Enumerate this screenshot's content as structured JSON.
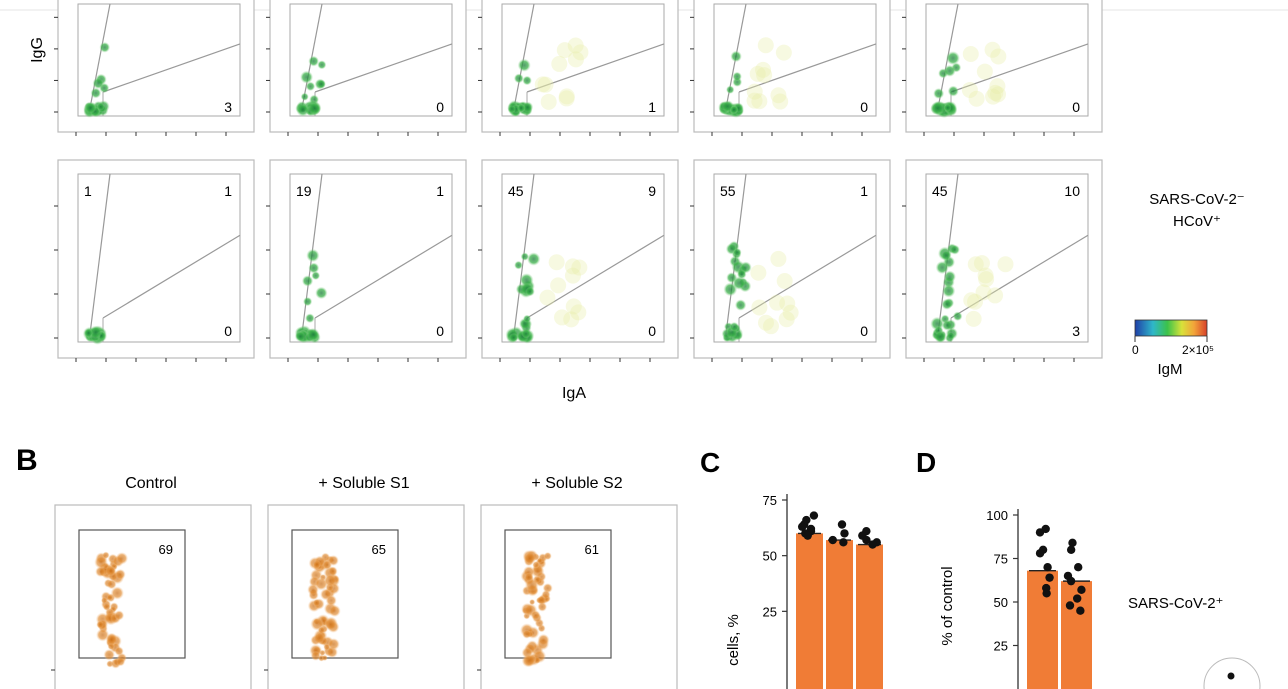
{
  "panelA": {
    "ylabel": "IgG",
    "xlabel": "IgA",
    "row_label_line1": "SARS-CoV-2⁻",
    "row_label_line2": "HCoV⁺",
    "top_row_numbers": [
      "3",
      "0",
      "1",
      "0",
      "0"
    ],
    "bottom_row": [
      {
        "tl": "1",
        "tr": "1",
        "br": "0"
      },
      {
        "tl": "19",
        "tr": "1",
        "br": "0"
      },
      {
        "tl": "45",
        "tr": "9",
        "br": "0"
      },
      {
        "tl": "55",
        "tr": "1",
        "br": "0"
      },
      {
        "tl": "45",
        "tr": "10",
        "br": "3"
      }
    ],
    "colorbar": {
      "min": "0",
      "max": "2×10⁵",
      "label": "IgM"
    }
  },
  "panelB": {
    "letter": "B",
    "conditions": [
      {
        "title": "Control",
        "value": "69"
      },
      {
        "title": "+ Soluble S1",
        "value": "65"
      },
      {
        "title": "+ Soluble S2",
        "value": "61"
      }
    ]
  },
  "panelC": {
    "letter": "C",
    "ylabel": "cells, %",
    "chart_data": {
      "type": "bar",
      "categories": [
        "",
        "",
        ""
      ],
      "values": [
        60,
        57,
        55
      ],
      "ylim": [
        0,
        75
      ],
      "yticks": [
        "75",
        "50",
        "25"
      ],
      "bar_color": "#F07C36"
    }
  },
  "panelD": {
    "letter": "D",
    "ylabel": "% of control",
    "side_label": "SARS-CoV-2⁺",
    "chart_data": {
      "type": "bar",
      "categories": [
        "",
        ""
      ],
      "values": [
        68,
        62
      ],
      "ylim": [
        0,
        100
      ],
      "yticks": [
        "100",
        "75",
        "50",
        "25"
      ],
      "bar_color": "#F07C36"
    }
  }
}
